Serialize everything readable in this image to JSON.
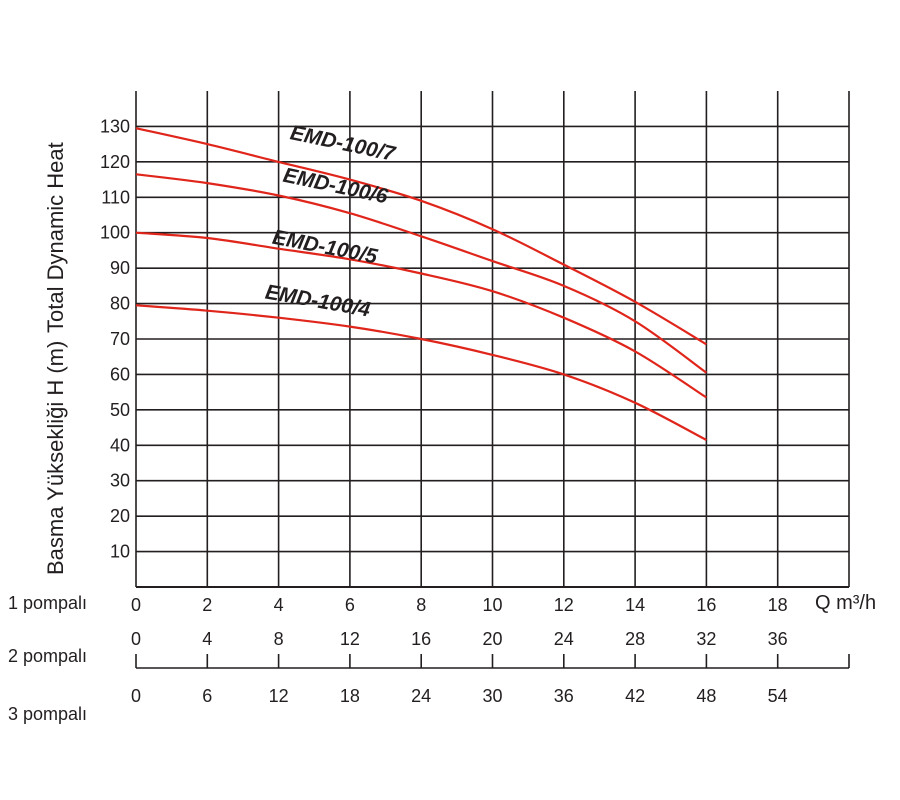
{
  "chart_data": {
    "type": "line",
    "ylabel": "Basma Yüksekliği H (m)",
    "ylabel_secondary": "Total Dynamic Heat",
    "xunit": "Q m³/h",
    "y_ticks": [
      10,
      20,
      30,
      40,
      50,
      60,
      70,
      80,
      90,
      100,
      110,
      120,
      130
    ],
    "ylim": [
      0,
      140
    ],
    "xlim": [
      0,
      20
    ],
    "grid": true,
    "x_axes": [
      {
        "label": "1 pompalı",
        "ticks": [
          "0",
          "2",
          "4",
          "6",
          "8",
          "10",
          "12",
          "14",
          "16",
          "18"
        ]
      },
      {
        "label": "2 pompalı",
        "ticks": [
          "0",
          "4",
          "8",
          "12",
          "16",
          "20",
          "24",
          "28",
          "32",
          "36"
        ]
      },
      {
        "label": "3 pompalı",
        "ticks": [
          "0",
          "6",
          "12",
          "18",
          "24",
          "30",
          "36",
          "42",
          "48",
          "54"
        ]
      }
    ],
    "line_color": "#e0251b",
    "series": [
      {
        "name": "EMD-100/7",
        "x": [
          0,
          2,
          4,
          6,
          8,
          10,
          12,
          14,
          16
        ],
        "y": [
          129.5,
          125,
          120,
          115,
          109,
          101,
          91,
          80.5,
          68.5
        ]
      },
      {
        "name": "EMD-100/6",
        "x": [
          0,
          2,
          4,
          6,
          8,
          10,
          12,
          14,
          16
        ],
        "y": [
          116.5,
          114,
          110.5,
          105.5,
          99,
          92,
          85,
          75,
          60.5
        ]
      },
      {
        "name": "EMD-100/5",
        "x": [
          0,
          2,
          4,
          6,
          8,
          10,
          12,
          14,
          16
        ],
        "y": [
          100,
          98.5,
          95.5,
          92.5,
          88.5,
          83.5,
          76,
          66.5,
          53.5
        ]
      },
      {
        "name": "EMD-100/4",
        "x": [
          0,
          2,
          4,
          6,
          8,
          10,
          12,
          14,
          16
        ],
        "y": [
          79.5,
          78,
          76,
          73.5,
          70,
          65.5,
          60,
          52,
          41.5
        ]
      }
    ]
  }
}
